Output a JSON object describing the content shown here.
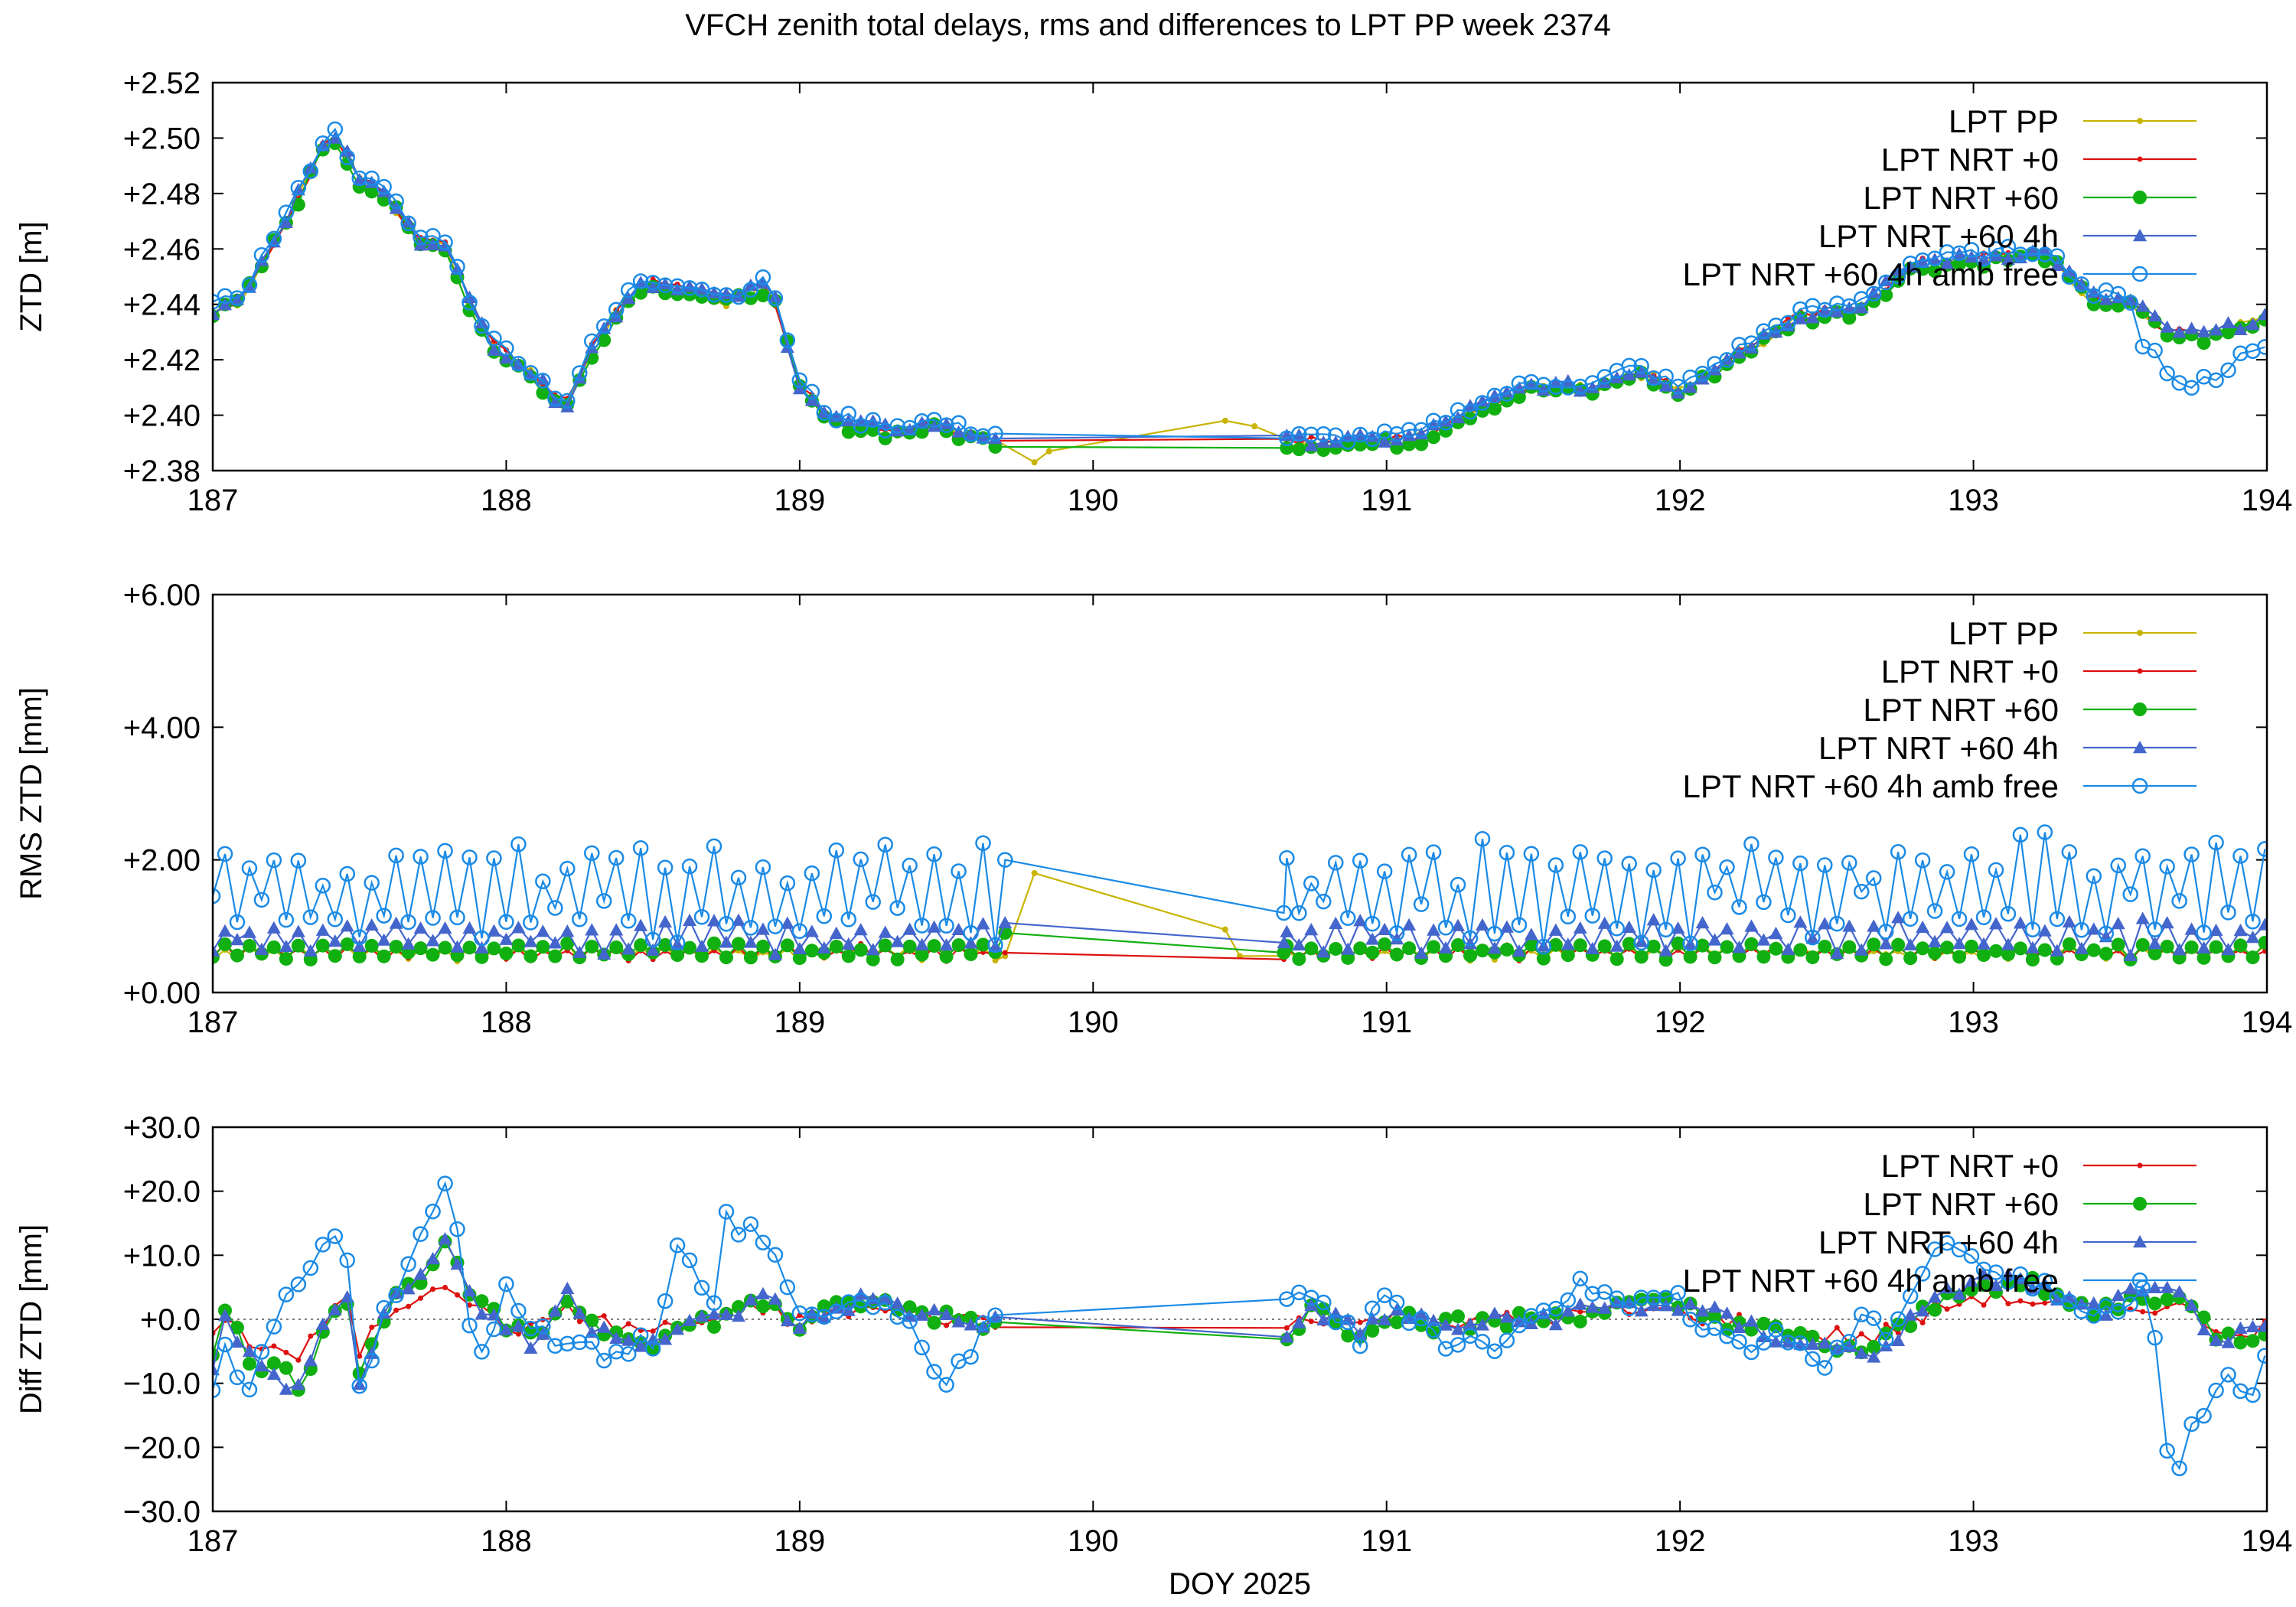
{
  "title": "VFCH zenith total delays, rms and differences to LPT PP week 2374",
  "colors": {
    "LPT PP": "#c8b400",
    "LPT NRT +0": "#dd1010",
    "LPT NRT +60": "#10b010",
    "LPT NRT +60 4h": "#4466cc",
    "LPT NRT +60 4h amb free": "#1a8ae6"
  },
  "chart_data": [
    {
      "type": "line",
      "name": "ztd",
      "ylabel": "ZTD [m]",
      "xlabel": "",
      "xlim": [
        187,
        194
      ],
      "ylim": [
        2.38,
        2.52
      ],
      "xticks": [
        "187",
        "188",
        "189",
        "190",
        "191",
        "192",
        "193",
        "194"
      ],
      "yticks": [
        "+2.38",
        "+2.40",
        "+2.42",
        "+2.44",
        "+2.46",
        "+2.48",
        "+2.50",
        "+2.52"
      ],
      "legend": [
        "LPT PP",
        "LPT NRT +0",
        "LPT NRT +60",
        "LPT NRT +60 4h",
        "LPT NRT +60 4h amb free"
      ],
      "legend_position": "top-right",
      "keypoints": [
        [
          187.0,
          2.437
        ],
        [
          187.1,
          2.442
        ],
        [
          187.2,
          2.461
        ],
        [
          187.3,
          2.48
        ],
        [
          187.4,
          2.503
        ],
        [
          187.5,
          2.485
        ],
        [
          187.6,
          2.478
        ],
        [
          187.7,
          2.462
        ],
        [
          187.8,
          2.462
        ],
        [
          187.85,
          2.445
        ],
        [
          187.95,
          2.425
        ],
        [
          188.05,
          2.418
        ],
        [
          188.2,
          2.402
        ],
        [
          188.3,
          2.425
        ],
        [
          188.45,
          2.447
        ],
        [
          188.6,
          2.446
        ],
        [
          188.75,
          2.441
        ],
        [
          188.9,
          2.447
        ],
        [
          189.0,
          2.41
        ],
        [
          189.1,
          2.398
        ],
        [
          189.3,
          2.394
        ],
        [
          189.45,
          2.396
        ],
        [
          189.6,
          2.392
        ],
        [
          189.7,
          2.391
        ],
        [
          190.65,
          2.39
        ],
        [
          190.9,
          2.39
        ],
        [
          191.1,
          2.391
        ],
        [
          191.3,
          2.402
        ],
        [
          191.5,
          2.41
        ],
        [
          191.7,
          2.409
        ],
        [
          191.85,
          2.416
        ],
        [
          192.0,
          2.408
        ],
        [
          192.2,
          2.422
        ],
        [
          192.4,
          2.435
        ],
        [
          192.6,
          2.438
        ],
        [
          192.8,
          2.454
        ],
        [
          193.0,
          2.456
        ],
        [
          193.25,
          2.458
        ],
        [
          193.4,
          2.442
        ],
        [
          193.55,
          2.44
        ],
        [
          193.65,
          2.43
        ],
        [
          193.8,
          2.428
        ],
        [
          194.0,
          2.435
        ]
      ],
      "amb_free_dip": [
        [
          193.6,
          2.426
        ],
        [
          193.7,
          2.41
        ],
        [
          193.85,
          2.415
        ],
        [
          193.95,
          2.426
        ]
      ]
    },
    {
      "type": "line",
      "name": "rms",
      "ylabel": "RMS ZTD [mm]",
      "xlabel": "",
      "xlim": [
        187,
        194
      ],
      "ylim": [
        0,
        6
      ],
      "xticks": [
        "187",
        "188",
        "189",
        "190",
        "191",
        "192",
        "193",
        "194"
      ],
      "yticks": [
        "+0.00",
        "+2.00",
        "+4.00",
        "+6.00"
      ],
      "legend": [
        "LPT PP",
        "LPT NRT +0",
        "LPT NRT +60",
        "LPT NRT +60 4h",
        "LPT NRT +60 4h amb free"
      ],
      "legend_position": "top-right",
      "levels": {
        "LPT PP": 0.6,
        "LPT NRT +0": 0.6,
        "LPT NRT +60": 0.62,
        "LPT NRT +60 4h": 0.85,
        "LPT NRT +60 4h amb free": 1.55
      },
      "gap_points": {
        "LPT PP": [
          [
            189.7,
            0.55
          ],
          [
            189.8,
            1.8
          ],
          [
            190.45,
            0.95
          ],
          [
            190.5,
            0.55
          ],
          [
            190.65,
            0.55
          ]
        ],
        "LPT NRT +0": [
          [
            189.7,
            0.6
          ],
          [
            190.65,
            0.5
          ]
        ],
        "LPT NRT +60": [
          [
            189.7,
            0.9
          ],
          [
            190.65,
            0.6
          ]
        ],
        "LPT NRT +60 4h": [
          [
            189.7,
            1.05
          ],
          [
            190.65,
            0.75
          ]
        ],
        "LPT NRT +60 4h amb free": [
          [
            189.7,
            2.0
          ],
          [
            190.65,
            1.2
          ]
        ]
      }
    },
    {
      "type": "line",
      "name": "diff",
      "ylabel": "Diff ZTD [mm]",
      "xlabel": "DOY 2025",
      "xlim": [
        187,
        194
      ],
      "ylim": [
        -30,
        30
      ],
      "xticks": [
        "187",
        "188",
        "189",
        "190",
        "191",
        "192",
        "193",
        "194"
      ],
      "yticks": [
        "−30.0",
        "−20.0",
        "−10.0",
        "+0.0",
        "+10.0",
        "+20.0",
        "+30.0"
      ],
      "legend": [
        "LPT NRT +0",
        "LPT NRT +60",
        "LPT NRT +60 4h",
        "LPT NRT +60 4h amb free"
      ],
      "legend_position": "top-right",
      "zero_line": true,
      "amb_free_keypoints": [
        [
          187.0,
          -13
        ],
        [
          187.05,
          -3
        ],
        [
          187.1,
          -14
        ],
        [
          187.2,
          -2
        ],
        [
          187.3,
          6
        ],
        [
          187.45,
          15
        ],
        [
          187.5,
          -10
        ],
        [
          187.6,
          3
        ],
        [
          187.7,
          11
        ],
        [
          187.8,
          22
        ],
        [
          187.9,
          -6
        ],
        [
          188.0,
          4
        ],
        [
          188.1,
          -1
        ],
        [
          188.3,
          -5
        ],
        [
          188.5,
          -3
        ],
        [
          188.6,
          13
        ],
        [
          188.7,
          -1
        ],
        [
          188.75,
          16
        ],
        [
          188.9,
          12
        ],
        [
          189.0,
          0
        ],
        [
          189.2,
          3
        ],
        [
          189.4,
          -2
        ],
        [
          189.5,
          -10
        ],
        [
          189.65,
          -1
        ],
        [
          189.7,
          -1
        ],
        [
          190.7,
          3
        ],
        [
          190.75,
          5
        ],
        [
          190.9,
          -4
        ],
        [
          191.0,
          4
        ],
        [
          191.2,
          -3
        ],
        [
          191.4,
          -4
        ],
        [
          191.6,
          4
        ],
        [
          191.75,
          6
        ],
        [
          191.85,
          2
        ],
        [
          192.0,
          3
        ],
        [
          192.2,
          -4
        ],
        [
          192.4,
          -3
        ],
        [
          192.5,
          -8
        ],
        [
          192.6,
          -1
        ],
        [
          192.7,
          -2
        ],
        [
          192.9,
          13
        ],
        [
          193.1,
          6
        ],
        [
          193.3,
          4
        ],
        [
          193.5,
          1
        ],
        [
          193.6,
          5
        ],
        [
          193.65,
          -18
        ],
        [
          193.7,
          -22
        ],
        [
          193.75,
          -17
        ],
        [
          193.85,
          -8
        ],
        [
          193.95,
          -12
        ],
        [
          194.0,
          -3
        ]
      ],
      "nrt60_keypoints": [
        [
          187.0,
          -6
        ],
        [
          187.05,
          3
        ],
        [
          187.1,
          -5
        ],
        [
          187.3,
          -10
        ],
        [
          187.45,
          6
        ],
        [
          187.5,
          -8
        ],
        [
          187.6,
          2
        ],
        [
          187.75,
          9
        ],
        [
          187.8,
          11
        ],
        [
          187.9,
          2
        ],
        [
          188.1,
          -4
        ],
        [
          188.2,
          4
        ],
        [
          188.3,
          -1
        ],
        [
          188.5,
          -3
        ],
        [
          188.7,
          0
        ],
        [
          188.9,
          3
        ],
        [
          189.0,
          -1
        ],
        [
          189.2,
          3
        ],
        [
          189.4,
          1
        ],
        [
          189.6,
          0
        ],
        [
          189.7,
          -1
        ],
        [
          190.65,
          -3
        ],
        [
          190.75,
          2
        ],
        [
          190.9,
          -2
        ],
        [
          191.0,
          1
        ],
        [
          191.2,
          -1
        ],
        [
          191.5,
          0
        ],
        [
          191.8,
          2
        ],
        [
          192.0,
          2
        ],
        [
          192.3,
          -2
        ],
        [
          192.5,
          -4
        ],
        [
          192.65,
          -5
        ],
        [
          192.8,
          0
        ],
        [
          193.0,
          6
        ],
        [
          193.2,
          5
        ],
        [
          193.4,
          1
        ],
        [
          193.6,
          4
        ],
        [
          193.7,
          3
        ],
        [
          193.85,
          -3
        ],
        [
          194.0,
          -2
        ]
      ]
    }
  ]
}
